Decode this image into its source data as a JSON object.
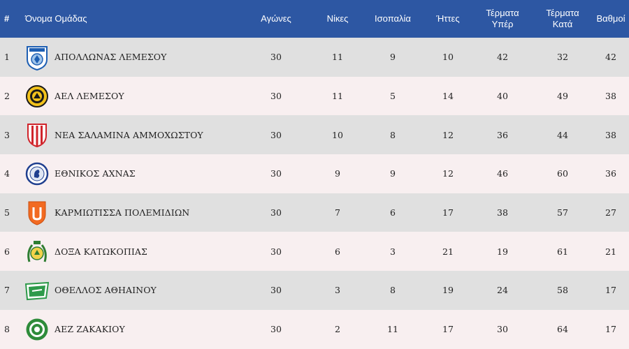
{
  "table": {
    "headers": {
      "position": "#",
      "team": "Όνομα Ομάδας",
      "played": "Αγώνες",
      "wins": "Νίκες",
      "draws": "Ισοπαλία",
      "losses": "Ήττες",
      "goals_for": "Τέρματα Υπέρ",
      "goals_against": "Τέρματα Κατά",
      "points": "Βαθμοί"
    },
    "rows": [
      {
        "pos": "1",
        "team": "ΑΠΟΛΛΩΝΑΣ ΛΕΜΕΣΟΥ",
        "played": "30",
        "wins": "11",
        "draws": "9",
        "losses": "10",
        "gf": "42",
        "ga": "32",
        "pts": "42"
      },
      {
        "pos": "2",
        "team": "ΑΕΛ ΛΕΜΕΣΟΥ",
        "played": "30",
        "wins": "11",
        "draws": "5",
        "losses": "14",
        "gf": "40",
        "ga": "49",
        "pts": "38"
      },
      {
        "pos": "3",
        "team": "ΝΕΑ ΣΑΛΑΜΙΝΑ ΑΜΜΟΧΩΣΤΟΥ",
        "played": "30",
        "wins": "10",
        "draws": "8",
        "losses": "12",
        "gf": "36",
        "ga": "44",
        "pts": "38"
      },
      {
        "pos": "4",
        "team": "ΕΘΝΙΚΟΣ ΑΧΝΑΣ",
        "played": "30",
        "wins": "9",
        "draws": "9",
        "losses": "12",
        "gf": "46",
        "ga": "60",
        "pts": "36"
      },
      {
        "pos": "5",
        "team": "ΚΑΡΜΙΩΤΙΣΣΑ ΠΟΛΕΜΙΔΙΩΝ",
        "played": "30",
        "wins": "7",
        "draws": "6",
        "losses": "17",
        "gf": "38",
        "ga": "57",
        "pts": "27"
      },
      {
        "pos": "6",
        "team": "ΔΟΞΑ ΚΑΤΩΚΟΠΙΑΣ",
        "played": "30",
        "wins": "6",
        "draws": "3",
        "losses": "21",
        "gf": "19",
        "ga": "61",
        "pts": "21"
      },
      {
        "pos": "7",
        "team": "ΟΘΕΛΛΟΣ ΑΘΗΑΙΝΟΥ",
        "played": "30",
        "wins": "3",
        "draws": "8",
        "losses": "19",
        "gf": "24",
        "ga": "58",
        "pts": "17"
      },
      {
        "pos": "8",
        "team": "ΑΕΖ ΖΑΚΑΚΙΟΥ",
        "played": "30",
        "wins": "2",
        "draws": "11",
        "losses": "17",
        "gf": "30",
        "ga": "64",
        "pts": "17"
      }
    ],
    "logos": [
      {
        "icon": "apollon-crest-icon",
        "colors": [
          "#1e5fb3",
          "#ffffff"
        ]
      },
      {
        "icon": "ael-crest-icon",
        "colors": [
          "#f2c21b",
          "#1a1a1a"
        ]
      },
      {
        "icon": "nea-salamina-crest-icon",
        "colors": [
          "#d0242b",
          "#ffffff"
        ]
      },
      {
        "icon": "ethnikos-crest-icon",
        "colors": [
          "#1f3f8f",
          "#ffffff"
        ]
      },
      {
        "icon": "karmiotissa-crest-icon",
        "colors": [
          "#f26a21",
          "#ffffff"
        ]
      },
      {
        "icon": "doxa-crest-icon",
        "colors": [
          "#2e7d32",
          "#f2d24b"
        ]
      },
      {
        "icon": "othellos-crest-icon",
        "colors": [
          "#2e9a4a",
          "#ffffff"
        ]
      },
      {
        "icon": "aez-crest-icon",
        "colors": [
          "#2e8b3a",
          "#ffffff"
        ]
      }
    ]
  },
  "theme": {
    "header_bg": "#2d57a3",
    "row_odd_bg": "#e0e0e0",
    "row_even_bg": "#f8eff0"
  }
}
